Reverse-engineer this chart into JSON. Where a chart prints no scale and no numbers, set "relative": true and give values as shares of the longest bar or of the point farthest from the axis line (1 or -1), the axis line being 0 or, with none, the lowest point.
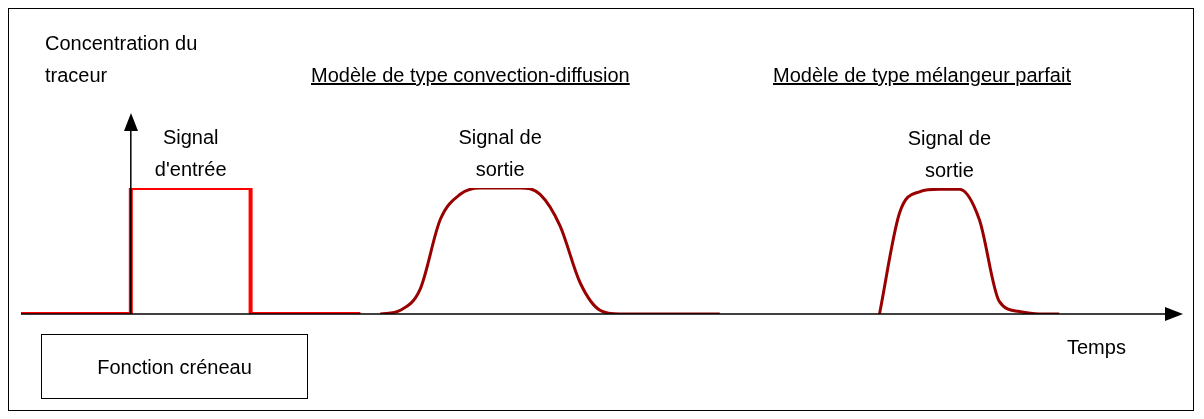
{
  "chart_data": {
    "type": "line",
    "relative": true,
    "xlabel": "Temps",
    "annotations": [
      "Concentration du traceur",
      "Modèle de type convection-diffusion",
      "Modèle de type mélangeur parfait",
      "Fonction créneau"
    ],
    "categories": [
      null,
      null,
      null,
      null,
      null,
      null,
      null,
      null,
      null,
      null,
      null,
      null,
      null,
      null,
      null,
      null,
      null,
      null,
      null,
      null,
      null,
      null,
      null,
      null,
      null,
      null,
      null,
      null,
      null,
      null,
      null,
      null,
      null,
      null,
      null,
      null,
      null,
      null,
      null,
      null,
      null,
      null,
      null,
      null,
      null,
      null,
      null,
      null,
      null,
      null,
      null,
      null,
      null,
      null,
      null,
      null,
      null,
      null
    ],
    "series": [
      {
        "name": "Signal d'entrée",
        "type": "step",
        "color": "#ff0000",
        "values": [
          0,
          0,
          0,
          0,
          0,
          0,
          1,
          1,
          1,
          1,
          1,
          1,
          0,
          0,
          0,
          0,
          0,
          0,
          null,
          null,
          null,
          null,
          null,
          null,
          null,
          null,
          null,
          null,
          null,
          null,
          null,
          null,
          null,
          null,
          null,
          null,
          null,
          null,
          null,
          null,
          null,
          null,
          null,
          null,
          null,
          null,
          null,
          null,
          null,
          null,
          null,
          null,
          null,
          null,
          null,
          null,
          null,
          null
        ]
      },
      {
        "name": "Signal de sortie",
        "type": "line",
        "color": "#990000",
        "values": [
          null,
          null,
          null,
          null,
          null,
          null,
          null,
          null,
          null,
          null,
          null,
          null,
          null,
          null,
          null,
          null,
          null,
          null,
          0,
          0.03,
          0.2,
          0.75,
          0.95,
          1,
          1,
          1,
          0.95,
          0.7,
          0.25,
          0.03,
          0,
          0,
          0,
          0,
          0,
          0,
          null,
          null,
          null,
          null,
          null,
          null,
          null,
          null,
          null,
          null,
          null,
          null,
          null,
          null,
          null,
          null,
          null,
          null,
          null,
          null,
          null,
          null
        ]
      },
      {
        "name": "Signal de sortie",
        "type": "line",
        "color": "#990000",
        "values": [
          null,
          null,
          null,
          null,
          null,
          null,
          null,
          null,
          null,
          null,
          null,
          null,
          null,
          null,
          null,
          null,
          null,
          null,
          null,
          null,
          null,
          null,
          null,
          null,
          null,
          null,
          null,
          null,
          null,
          null,
          null,
          null,
          null,
          null,
          null,
          null,
          null,
          null,
          null,
          null,
          null,
          null,
          null,
          0,
          0.8,
          0.97,
          0.99,
          0.99,
          0.75,
          0.1,
          0.02,
          0,
          0,
          null,
          null,
          null,
          null,
          null
        ]
      }
    ],
    "legend": false
  }
}
